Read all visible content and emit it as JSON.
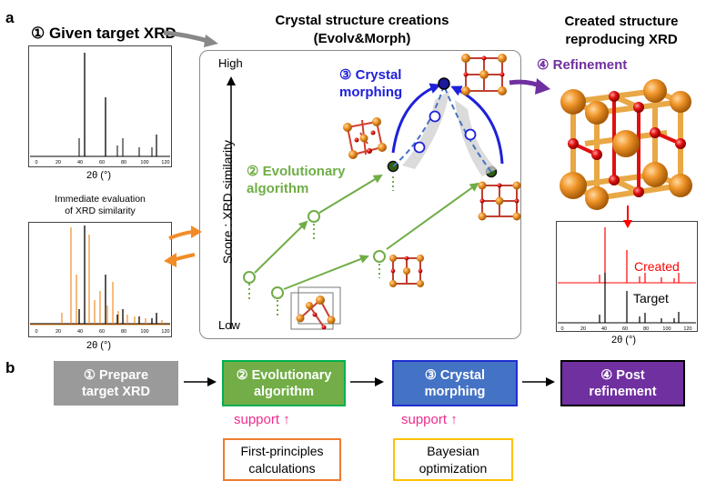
{
  "panels": {
    "a": "a",
    "b": "b"
  },
  "panel_a": {
    "given_xrd_title": "① Given target XRD",
    "immediate_eval_line1": "Immediate evaluation",
    "immediate_eval_line2": "of XRD similarity",
    "x_axis_label": "2θ (°)",
    "x_ticks": [
      "0",
      "20",
      "40",
      "60",
      "80",
      "100",
      "120"
    ],
    "center_title_line1": "Crystal structure creations",
    "center_title_line2": "(Evolv&Morph)",
    "y_axis_label": "Score : XRD similarity",
    "y_high": "High",
    "y_low": "Low",
    "step2_line1": "② Evolutionary",
    "step2_line2": "algorithm",
    "step3_line1": "③ Crystal",
    "step3_line2": "morphing",
    "step4": "④ Refinement",
    "right_title_line1": "Created structure",
    "right_title_line2": "reproducing XRD",
    "legend_created": "Created",
    "legend_target": "Target"
  },
  "flow": {
    "step1": [
      "① Prepare",
      "target XRD"
    ],
    "step2": [
      "② Evolutionary",
      "algorithm"
    ],
    "step3": [
      "③ Crystal",
      "morphing"
    ],
    "step4": [
      "④ Post",
      "refinement"
    ],
    "support_label": "support ↑",
    "support1": [
      "First-principles",
      "calculations"
    ],
    "support2": [
      "Bayesian",
      "optimization"
    ]
  },
  "colors": {
    "step1": "#9a9a9a",
    "step2": "#72ad47",
    "step3": "#4472c4",
    "step4": "#7030a0",
    "green_text": "#70ad47",
    "blue_text": "#1f20d9",
    "purple_text": "#7030a0",
    "orange": "#f28c28",
    "created_red": "#ff0000",
    "support_pink": "#ee2e8c",
    "support1_border": "#ed7d31",
    "support2_border": "#ffc000"
  }
}
